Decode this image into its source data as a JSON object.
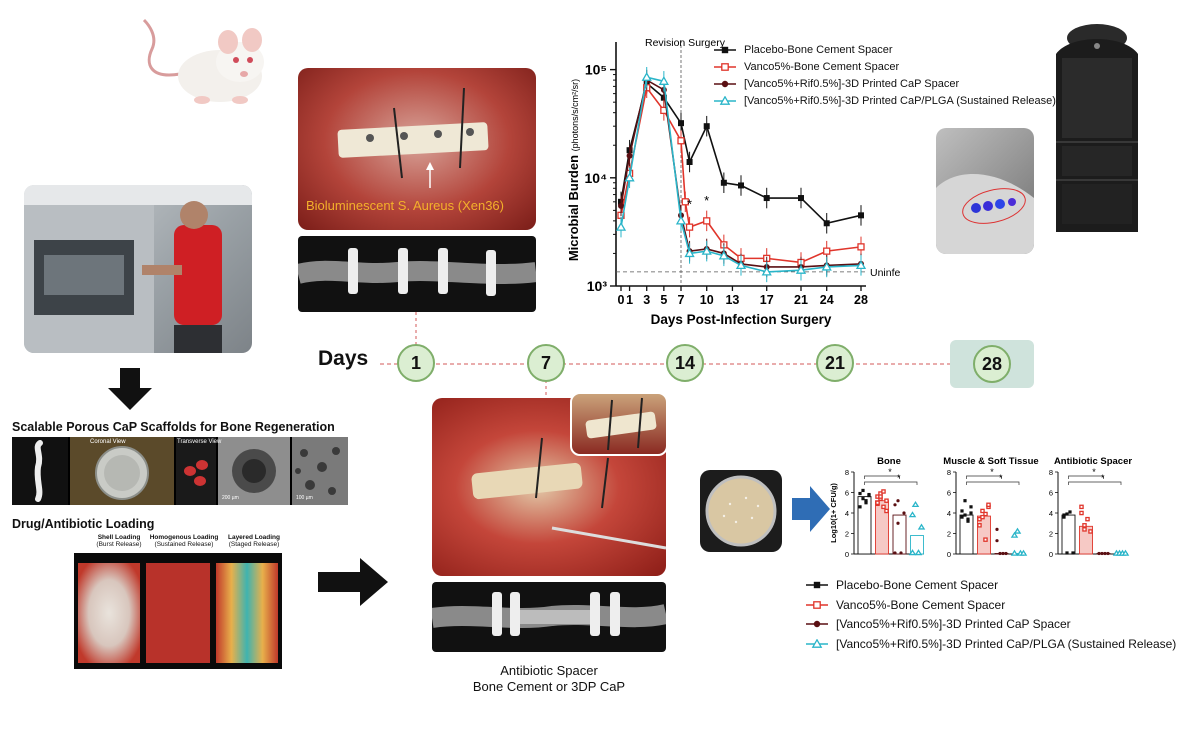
{
  "labels": {
    "days": "Days",
    "scaffolds_title": "Scalable Porous CaP Scaffolds for Bone Regeneration",
    "coronal": "Coronal View",
    "transverse": "Transverse View",
    "loading_title": "Drug/Antibiotic Loading",
    "shell": "Shell Loading",
    "shell_sub": "(Burst Release)",
    "homog": "Homogenous Loading",
    "homog_sub": "(Sustained Release)",
    "layered": "Layered Loading",
    "layered_sub": "(Staged Release)",
    "bacteria": "Bioluminescent S. Aureus (Xen36)",
    "spacer_line1": "Antibiotic Spacer",
    "spacer_line2": "Bone Cement or 3DP CaP",
    "scale1": "200 µm",
    "scale2": "100 µm"
  },
  "timeline": [
    "1",
    "7",
    "14",
    "21",
    "28"
  ],
  "colors": {
    "placebo": "#111111",
    "vanco": "#e0352b",
    "cap": "#5a0f12",
    "plga": "#2ab5c9",
    "node_fill": "#dbeed2",
    "node_final": "#cfe3dc"
  },
  "line_chart": {
    "revision": "Revision Surgery",
    "uninfected": "Uninfected Mice",
    "xlabel": "Days Post-Infection Surgery",
    "ylabel": "Microbial Burden",
    "ylabel_unit": "(photons/s/cm²/sr)",
    "xticks": [
      "0",
      "1",
      "3",
      "5",
      "7",
      "10",
      "13",
      "17",
      "21",
      "24",
      "28"
    ],
    "yticks": [
      "10³",
      "10⁴",
      "10⁵"
    ]
  },
  "chart_data": [
    {
      "type": "line",
      "xlabel": "Days Post-Infection Surgery",
      "ylabel": "Microbial Burden (photons/s/cm²/sr)",
      "yscale": "log",
      "ylim": [
        1000,
        180000
      ],
      "x": [
        0,
        1,
        3,
        5,
        7,
        8,
        10,
        12,
        14,
        17,
        21,
        24,
        28
      ],
      "annotations": [
        "Revision Surgery",
        "Uninfected Mice",
        "*",
        "*"
      ],
      "series": [
        {
          "name": "Placebo-Bone Cement Spacer",
          "x": [
            0,
            1,
            3,
            5,
            7,
            8,
            10,
            12,
            14,
            17,
            21,
            24,
            28
          ],
          "values": [
            6000,
            18000,
            75000,
            55000,
            32000,
            14000,
            30000,
            9000,
            8500,
            6500,
            6500,
            3800,
            4500
          ]
        },
        {
          "name": "Vanco5%-Bone Cement Spacer",
          "x": [
            0,
            1,
            3,
            5,
            7,
            7.5,
            8,
            10,
            12,
            14,
            17,
            21,
            24,
            28
          ],
          "values": [
            4500,
            11000,
            68000,
            42000,
            22000,
            6000,
            3500,
            4000,
            2400,
            1800,
            1800,
            1650,
            2100,
            2300
          ]
        },
        {
          "name": "[Vanco5%+Rif0.5%]-3D Printed CaP Spacer",
          "x": [
            0,
            1,
            3,
            5,
            7,
            8,
            10,
            12,
            14,
            17,
            21,
            24,
            28
          ],
          "values": [
            5500,
            16000,
            80000,
            65000,
            4500,
            2100,
            2200,
            2000,
            1600,
            1500,
            1500,
            1550,
            1600
          ]
        },
        {
          "name": "[Vanco5%+Rif0.5%]-3D Printed CaP/PLGA (Sustained Release)",
          "x": [
            0,
            1,
            3,
            5,
            7,
            8,
            10,
            12,
            14,
            17,
            21,
            24,
            28
          ],
          "values": [
            3500,
            10000,
            85000,
            78000,
            4000,
            2000,
            2100,
            1900,
            1550,
            1350,
            1400,
            1500,
            1550
          ]
        }
      ]
    },
    {
      "type": "bar",
      "ylabel": "Log10(1+ CFU/g)",
      "ylim": [
        0,
        8
      ],
      "categories": [
        "Placebo-Bone Cement Spacer",
        "Vanco5%-Bone Cement Spacer",
        "[Vanco5%+Rif0.5%]-3D Printed CaP Spacer",
        "[Vanco5%+Rif0.5%]-3D Printed CaP/PLGA (Sustained Release)"
      ],
      "panels": [
        {
          "title": "Bone",
          "values": [
            5.6,
            5.2,
            3.8,
            1.8
          ]
        },
        {
          "title": "Muscle & Soft Tissue",
          "values": [
            3.8,
            3.7,
            0.05,
            0.05
          ]
        },
        {
          "title": "Antibiotic Spacer",
          "values": [
            3.8,
            2.7,
            0.05,
            0.05
          ]
        }
      ],
      "annotations": [
        "*",
        "*",
        "*",
        "*",
        "*",
        "*"
      ]
    }
  ],
  "legend": [
    {
      "key": "placebo",
      "base": "Placebo-Bone Cement Spacer"
    },
    {
      "key": "vanco",
      "base": "Vanco5%-Bone Cement Spacer"
    },
    {
      "key": "cap",
      "base": "[Vanco5%+Rif0.5%]-3D Printed CaP Spacer"
    },
    {
      "key": "plga",
      "base": "[Vanco5%+Rif0.5%]-3D Printed CaP/PLGA (Sustained Release)"
    }
  ],
  "bar_charts": {
    "ylabel": "Log10(1+ CFU/g)",
    "yticks": [
      "0",
      "2",
      "4",
      "6",
      "8"
    ],
    "titles": [
      "Bone",
      "Muscle & Soft Tissue",
      "Antibiotic Spacer"
    ]
  }
}
